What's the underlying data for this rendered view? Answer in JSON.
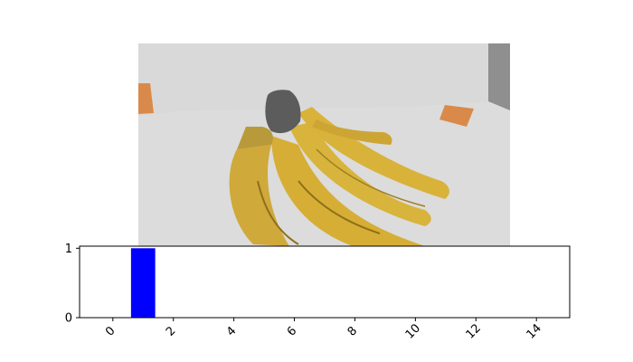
{
  "photo": {
    "description_icon": "banana-bunch-photo",
    "colors": {
      "wall": "#8c8c8c",
      "table": "#d7d7d7",
      "banana": "#d9b23a",
      "banana_shadow": "#9a7a1e",
      "tape": "#d98a4a",
      "stem": "#5a5a5a"
    }
  },
  "chart_data": {
    "type": "bar",
    "x": [
      1
    ],
    "values": [
      1
    ],
    "xlim": [
      -1.1,
      15.1
    ],
    "ylim": [
      0,
      1.03
    ],
    "xticks": [
      0,
      2,
      4,
      6,
      8,
      10,
      12,
      14
    ],
    "yticks": [
      0,
      1
    ],
    "bar_width": 0.8,
    "bar_color": "#0000ff",
    "grid": false,
    "title": "",
    "xlabel": "",
    "ylabel": ""
  }
}
